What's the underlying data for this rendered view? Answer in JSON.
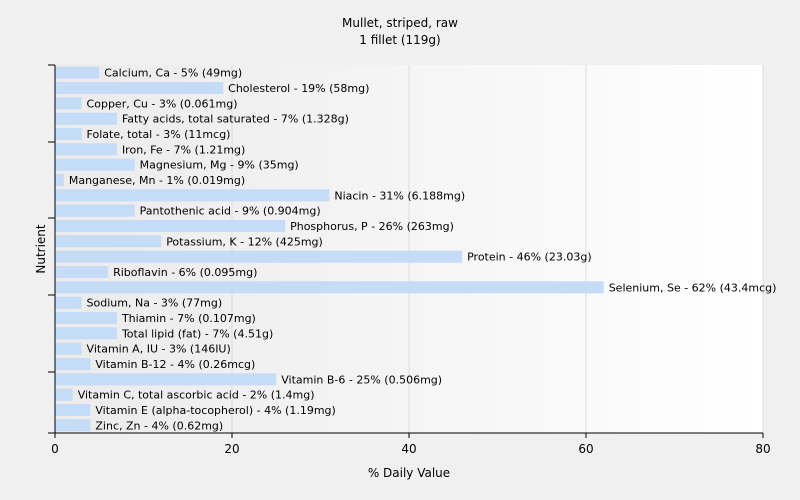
{
  "chart_data": {
    "type": "bar",
    "orientation": "horizontal",
    "title": "Mullet, striped, raw",
    "subtitle": "1 fillet (119g)",
    "xlabel": "% Daily Value",
    "ylabel": "Nutrient",
    "xlim": [
      0,
      80
    ],
    "xticks": [
      "0",
      "20",
      "40",
      "60",
      "80"
    ],
    "grid": true,
    "colors": {
      "bar": "#c4dcf7",
      "background": "#f0f0f0",
      "plot_area_start": "#ebebeb",
      "plot_area_end": "#ffffff",
      "gridline": "#dddddd",
      "axis": "#000000"
    },
    "categories": [
      "Calcium, Ca",
      "Cholesterol",
      "Copper, Cu",
      "Fatty acids, total saturated",
      "Folate, total",
      "Iron, Fe",
      "Magnesium, Mg",
      "Manganese, Mn",
      "Niacin",
      "Pantothenic acid",
      "Phosphorus, P",
      "Potassium, K",
      "Protein",
      "Riboflavin",
      "Selenium, Se",
      "Sodium, Na",
      "Thiamin",
      "Total lipid (fat)",
      "Vitamin A, IU",
      "Vitamin B-12",
      "Vitamin B-6",
      "Vitamin C, total ascorbic acid",
      "Vitamin E (alpha-tocopherol)",
      "Zinc, Zn"
    ],
    "values": [
      5,
      19,
      3,
      7,
      3,
      7,
      9,
      1,
      31,
      9,
      26,
      12,
      46,
      6,
      62,
      3,
      7,
      7,
      3,
      4,
      25,
      2,
      4,
      4
    ],
    "labels": [
      "Calcium, Ca - 5% (49mg)",
      "Cholesterol - 19% (58mg)",
      "Copper, Cu - 3% (0.061mg)",
      "Fatty acids, total saturated - 7% (1.328g)",
      "Folate, total - 3% (11mcg)",
      "Iron, Fe - 7% (1.21mg)",
      "Magnesium, Mg - 9% (35mg)",
      "Manganese, Mn - 1% (0.019mg)",
      "Niacin - 31% (6.188mg)",
      "Pantothenic acid - 9% (0.904mg)",
      "Phosphorus, P - 26% (263mg)",
      "Potassium, K - 12% (425mg)",
      "Protein - 46% (23.03g)",
      "Riboflavin - 6% (0.095mg)",
      "Selenium, Se - 62% (43.4mcg)",
      "Sodium, Na - 3% (77mg)",
      "Thiamin - 7% (0.107mg)",
      "Total lipid (fat) - 7% (4.51g)",
      "Vitamin A, IU - 3% (146IU)",
      "Vitamin B-12 - 4% (0.26mcg)",
      "Vitamin B-6 - 25% (0.506mg)",
      "Vitamin C, total ascorbic acid - 2% (1.4mg)",
      "Vitamin E (alpha-tocopherol) - 4% (1.19mg)",
      "Zinc, Zn - 4% (0.62mg)"
    ]
  }
}
